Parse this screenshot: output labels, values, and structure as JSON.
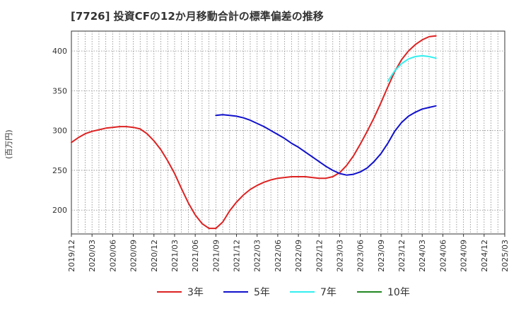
{
  "chart_data": {
    "type": "line",
    "title": "[7726]  投資CFの12か月移動合計の標準偏差の推移",
    "ylabel": "(百万円)",
    "xlabel": "",
    "ylim": [
      170,
      425
    ],
    "y_ticks": [
      200,
      250,
      300,
      350,
      400
    ],
    "x_tick_labels": [
      "2019/12",
      "2020/03",
      "2020/06",
      "2020/09",
      "2020/12",
      "2021/03",
      "2021/06",
      "2021/09",
      "2021/12",
      "2022/03",
      "2022/06",
      "2022/09",
      "2022/12",
      "2023/03",
      "2023/06",
      "2023/09",
      "2023/12",
      "2024/03",
      "2024/06",
      "2024/09",
      "2024/12",
      "2025/03"
    ],
    "grid": true,
    "legend_position": "bottom",
    "series": [
      {
        "name": "3年",
        "color": "#dd2222",
        "start_index": 0,
        "values": [
          285,
          291,
          296,
          299,
          301,
          303,
          304,
          305,
          305,
          304,
          302,
          296,
          287,
          276,
          262,
          246,
          227,
          209,
          194,
          183,
          177,
          177,
          185,
          199,
          210,
          219,
          226,
          231,
          235,
          238,
          240,
          241,
          242,
          242,
          242,
          241,
          240,
          240,
          242,
          247,
          256,
          268,
          283,
          299,
          316,
          335,
          355,
          374,
          389,
          400,
          408,
          414,
          418,
          419
        ]
      },
      {
        "name": "5年",
        "color": "#1111cc",
        "start_index": 21,
        "values": [
          319,
          320,
          319,
          318,
          316,
          313,
          309,
          305,
          300,
          295,
          290,
          284,
          279,
          273,
          267,
          261,
          255,
          250,
          246,
          244,
          245,
          248,
          253,
          261,
          271,
          284,
          299,
          310,
          318,
          323,
          327,
          329,
          331
        ]
      },
      {
        "name": "7年",
        "color": "#33eeee",
        "start_index": 46,
        "values": [
          362,
          375,
          384,
          390,
          393,
          394,
          393,
          391
        ]
      },
      {
        "name": "10年",
        "color": "#228822",
        "start_index": 0,
        "values": []
      }
    ]
  }
}
